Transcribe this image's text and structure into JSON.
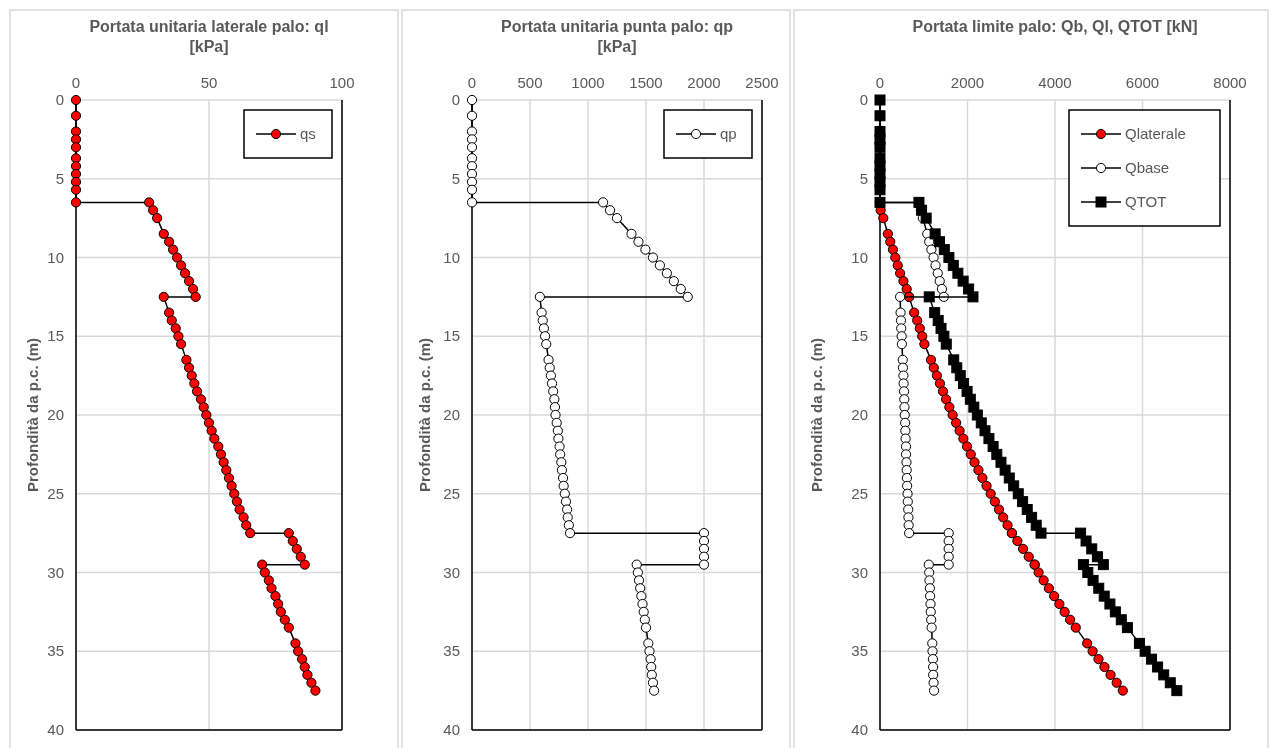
{
  "chart_data": [
    {
      "type": "line",
      "title": "Portata unitaria laterale palo: ql\n[kPa]",
      "ylabel": "Profondità da p.c. (m)",
      "xlim": [
        0,
        100
      ],
      "xticks": [
        0,
        50,
        100
      ],
      "ylim": [
        40,
        0
      ],
      "yticks": [
        0,
        5,
        10,
        15,
        20,
        25,
        30,
        35,
        40
      ],
      "grid": true,
      "legend": "top right",
      "series": [
        {
          "name": "qs",
          "color": "#ff0000",
          "marker": "circle",
          "x": [
            0,
            0,
            0,
            0,
            0,
            0,
            0,
            0,
            0,
            0,
            0,
            27.5,
            29,
            30.5,
            33,
            35,
            36.5,
            38,
            39.5,
            41,
            42.5,
            44,
            45,
            33,
            35,
            36,
            37.5,
            38.5,
            39.5,
            41.5,
            42.5,
            43.5,
            44.5,
            45.5,
            47,
            48,
            49,
            50,
            51,
            52,
            53.5,
            54.5,
            55.5,
            56.5,
            57.5,
            58.5,
            59.5,
            60.5,
            61.5,
            63,
            64,
            65.5,
            80,
            81.5,
            83,
            84.5,
            86,
            70,
            71,
            72.5,
            73.5,
            75,
            76,
            77,
            78.5,
            80,
            82.5,
            83.5,
            85,
            86,
            87,
            88.5,
            90
          ],
          "values": [
            0,
            1,
            2,
            2.5,
            3,
            3.7,
            4.2,
            4.7,
            5.2,
            5.7,
            6.5,
            6.5,
            7,
            7.5,
            8.5,
            9,
            9.5,
            10,
            10.5,
            11,
            11.5,
            12,
            12.5,
            12.5,
            13.5,
            14,
            14.5,
            15,
            15.5,
            16.5,
            17,
            17.5,
            18,
            18.5,
            19,
            19.5,
            20,
            20.5,
            21,
            21.5,
            22,
            22.5,
            23,
            23.5,
            24,
            24.5,
            25,
            25.5,
            26,
            26.5,
            27,
            27.5,
            27.5,
            28,
            28.5,
            29,
            29.5,
            29.5,
            30,
            30.5,
            31,
            31.5,
            32,
            32.5,
            33,
            33.5,
            34.5,
            35,
            35.5,
            36,
            36.5,
            37,
            37.5
          ]
        }
      ]
    },
    {
      "type": "line",
      "title": "Portata unitaria punta palo: qp\n[kPa]",
      "ylabel": "Profondità da p.c. (m)",
      "xlim": [
        0,
        2500
      ],
      "xticks": [
        0,
        500,
        1000,
        1500,
        2000,
        2500
      ],
      "ylim": [
        40,
        0
      ],
      "yticks": [
        0,
        5,
        10,
        15,
        20,
        25,
        30,
        35,
        40
      ],
      "grid": true,
      "legend": "top right",
      "series": [
        {
          "name": "qp",
          "color": "#ffffff",
          "marker": "circle",
          "x": [
            0,
            0,
            0,
            0,
            0,
            0,
            0,
            0,
            0,
            0,
            0,
            1130,
            1190,
            1250,
            1375,
            1435,
            1495,
            1560,
            1620,
            1680,
            1740,
            1800,
            1860,
            585,
            600,
            610,
            620,
            630,
            640,
            660,
            670,
            680,
            690,
            700,
            710,
            715,
            720,
            730,
            740,
            745,
            755,
            760,
            770,
            775,
            785,
            790,
            800,
            810,
            820,
            825,
            835,
            845,
            2000,
            2000,
            2000,
            2000,
            2000,
            1420,
            1430,
            1440,
            1450,
            1460,
            1470,
            1480,
            1490,
            1500,
            1520,
            1530,
            1540,
            1545,
            1550,
            1560,
            1570
          ],
          "values": [
            0,
            1,
            2,
            2.5,
            3,
            3.7,
            4.2,
            4.7,
            5.2,
            5.7,
            6.5,
            6.5,
            7,
            7.5,
            8.5,
            9,
            9.5,
            10,
            10.5,
            11,
            11.5,
            12,
            12.5,
            12.5,
            13.5,
            14,
            14.5,
            15,
            15.5,
            16.5,
            17,
            17.5,
            18,
            18.5,
            19,
            19.5,
            20,
            20.5,
            21,
            21.5,
            22,
            22.5,
            23,
            23.5,
            24,
            24.5,
            25,
            25.5,
            26,
            26.5,
            27,
            27.5,
            27.5,
            28,
            28.5,
            29,
            29.5,
            29.5,
            30,
            30.5,
            31,
            31.5,
            32,
            32.5,
            33,
            33.5,
            34.5,
            35,
            35.5,
            36,
            36.5,
            37,
            37.5
          ]
        }
      ]
    },
    {
      "type": "line",
      "title": "Portata limite palo: Qb, Ql, QTOT [kN]",
      "ylabel": "Profondità da p.c. (m)",
      "xlim": [
        0,
        8000
      ],
      "xticks": [
        0,
        2000,
        4000,
        6000,
        8000
      ],
      "ylim": [
        40,
        0
      ],
      "yticks": [
        0,
        5,
        10,
        15,
        20,
        25,
        30,
        35,
        40
      ],
      "grid": true,
      "legend": "top right",
      "series": [
        {
          "name": "Qlaterale",
          "color": "#ff0000",
          "marker": "circle",
          "x": [
            0,
            0,
            0,
            0,
            0,
            0,
            0,
            0,
            0,
            0,
            0,
            0,
            15,
            75,
            180,
            235,
            295,
            350,
            405,
            460,
            535,
            610,
            665,
            665,
            780,
            850,
            910,
            965,
            1015,
            1165,
            1230,
            1300,
            1370,
            1440,
            1510,
            1585,
            1660,
            1740,
            1820,
            1905,
            1990,
            2075,
            2160,
            2250,
            2340,
            2435,
            2530,
            2625,
            2720,
            2815,
            2915,
            3015,
            3015,
            3140,
            3270,
            3400,
            3535,
            3535,
            3625,
            3740,
            3860,
            3980,
            4100,
            4220,
            4345,
            4475,
            4735,
            4860,
            4995,
            5130,
            5270,
            5410,
            5550
          ],
          "values": [
            0,
            1,
            2,
            2.5,
            3,
            3.7,
            4.2,
            4.7,
            5.2,
            5.7,
            6.5,
            6.5,
            7,
            7.5,
            8.5,
            9,
            9.5,
            10,
            10.5,
            11,
            11.5,
            12,
            12.5,
            12.5,
            13.5,
            14,
            14.5,
            15,
            15.5,
            16.5,
            17,
            17.5,
            18,
            18.5,
            19,
            19.5,
            20,
            20.5,
            21,
            21.5,
            22,
            22.5,
            23,
            23.5,
            24,
            24.5,
            25,
            25.5,
            26,
            26.5,
            27,
            27.5,
            27.5,
            28,
            28.5,
            29,
            29.5,
            29.5,
            30,
            30.5,
            31,
            31.5,
            32,
            32.5,
            33,
            33.5,
            34.5,
            35,
            35.5,
            36,
            36.5,
            37,
            37.5
          ]
        },
        {
          "name": "Qbase",
          "color": "#ffffff",
          "marker": "circle",
          "x": [
            0,
            0,
            0,
            0,
            0,
            0,
            0,
            0,
            0,
            0,
            0,
            890,
            935,
            980,
            1080,
            1125,
            1175,
            1225,
            1270,
            1320,
            1365,
            1415,
            1460,
            460,
            470,
            480,
            485,
            495,
            500,
            520,
            525,
            535,
            540,
            550,
            555,
            560,
            565,
            575,
            580,
            585,
            595,
            595,
            605,
            610,
            615,
            620,
            630,
            635,
            645,
            650,
            655,
            665,
            1570,
            1570,
            1570,
            1570,
            1570,
            1115,
            1125,
            1130,
            1140,
            1145,
            1155,
            1160,
            1170,
            1180,
            1195,
            1200,
            1210,
            1215,
            1215,
            1225,
            1235
          ],
          "values": [
            0,
            1,
            2,
            2.5,
            3,
            3.7,
            4.2,
            4.7,
            5.2,
            5.7,
            6.5,
            6.5,
            7,
            7.5,
            8.5,
            9,
            9.5,
            10,
            10.5,
            11,
            11.5,
            12,
            12.5,
            12.5,
            13.5,
            14,
            14.5,
            15,
            15.5,
            16.5,
            17,
            17.5,
            18,
            18.5,
            19,
            19.5,
            20,
            20.5,
            21,
            21.5,
            22,
            22.5,
            23,
            23.5,
            24,
            24.5,
            25,
            25.5,
            26,
            26.5,
            27,
            27.5,
            27.5,
            28,
            28.5,
            29,
            29.5,
            29.5,
            30,
            30.5,
            31,
            31.5,
            32,
            32.5,
            33,
            33.5,
            34.5,
            35,
            35.5,
            36,
            36.5,
            37,
            37.5
          ]
        },
        {
          "name": "QTOT",
          "color": "#000000",
          "marker": "square",
          "x": [
            0,
            0,
            0,
            0,
            0,
            0,
            0,
            0,
            0,
            0,
            0,
            890,
            950,
            1055,
            1260,
            1360,
            1470,
            1575,
            1675,
            1780,
            1900,
            2025,
            2125,
            1125,
            1250,
            1330,
            1395,
            1460,
            1515,
            1685,
            1755,
            1835,
            1910,
            1990,
            2065,
            2145,
            2225,
            2315,
            2400,
            2490,
            2585,
            2670,
            2765,
            2860,
            2955,
            3055,
            3160,
            3260,
            3365,
            3465,
            3570,
            3680,
            4585,
            4710,
            4840,
            4970,
            5105,
            4650,
            4750,
            4870,
            5000,
            5125,
            5255,
            5380,
            5515,
            5655,
            5930,
            6060,
            6205,
            6345,
            6485,
            6635,
            6785
          ],
          "values": [
            0,
            1,
            2,
            2.5,
            3,
            3.7,
            4.2,
            4.7,
            5.2,
            5.7,
            6.5,
            6.5,
            7,
            7.5,
            8.5,
            9,
            9.5,
            10,
            10.5,
            11,
            11.5,
            12,
            12.5,
            12.5,
            13.5,
            14,
            14.5,
            15,
            15.5,
            16.5,
            17,
            17.5,
            18,
            18.5,
            19,
            19.5,
            20,
            20.5,
            21,
            21.5,
            22,
            22.5,
            23,
            23.5,
            24,
            24.5,
            25,
            25.5,
            26,
            26.5,
            27,
            27.5,
            27.5,
            28,
            28.5,
            29,
            29.5,
            29.5,
            30,
            30.5,
            31,
            31.5,
            32,
            32.5,
            33,
            33.5,
            34.5,
            35,
            35.5,
            36,
            36.5,
            37,
            37.5
          ]
        }
      ]
    }
  ]
}
